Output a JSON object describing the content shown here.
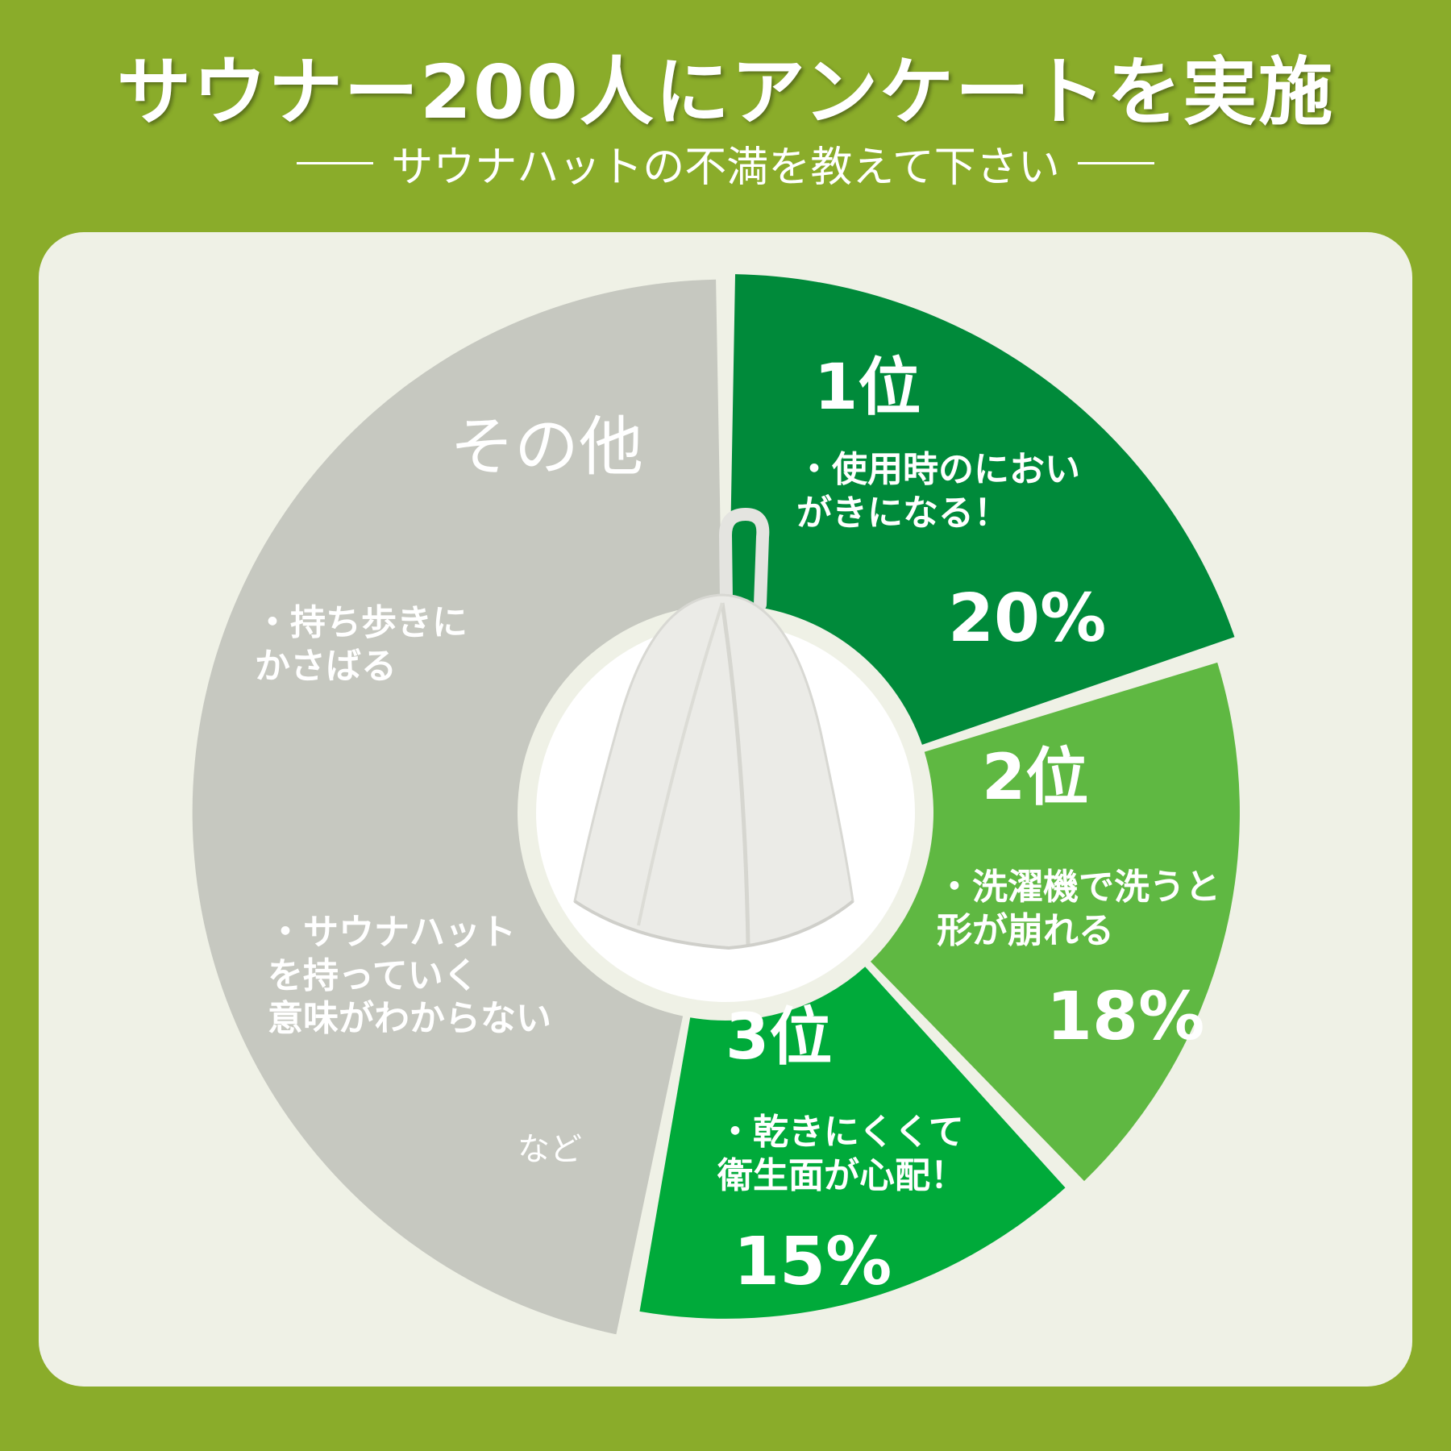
{
  "title": "サウナー200人にアンケートを実施",
  "subtitle": "サウナハットの不満を教えて下さい",
  "chart_data": {
    "type": "pie",
    "categories": [
      "1位",
      "2位",
      "3位",
      "その他"
    ],
    "values": [
      20,
      18,
      15,
      47
    ],
    "series": [
      {
        "rank": "1位",
        "text": "・使用時のにおい\nがきになる！",
        "value_label": "20%",
        "value": 20,
        "color": "#008a3a"
      },
      {
        "rank": "2位",
        "text": "・洗濯機で洗うと\n形が崩れる",
        "value_label": "18%",
        "value": 18,
        "color": "#5fb842"
      },
      {
        "rank": "3位",
        "text": "・乾きにくくて\n衛生面が心配！",
        "value_label": "15%",
        "value": 15,
        "color": "#00aa3a"
      },
      {
        "rank": "その他",
        "text": "",
        "value_label": "",
        "value": 47,
        "color": "#c6c8c0"
      }
    ],
    "other_items": [
      "・持ち歩きに\nかさばる",
      "・サウナハット\nを持っていく\n意味がわからない",
      "など"
    ]
  },
  "colors": {
    "background": "#8aac2a",
    "panel": "#eff1e6",
    "hat": "#ecece8"
  },
  "center_image": "sauna-hat-icon"
}
